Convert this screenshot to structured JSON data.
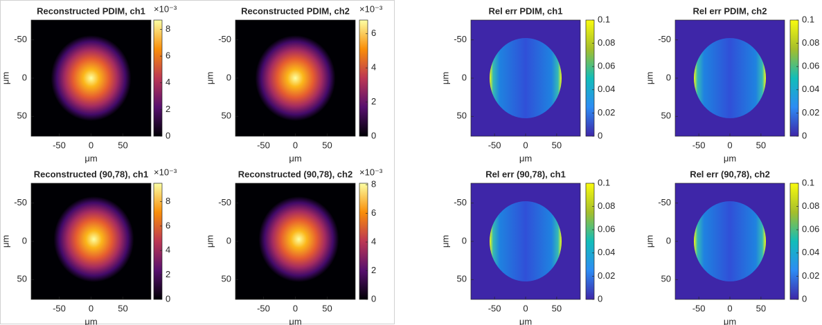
{
  "chart_data": [
    {
      "type": "image",
      "title": "Reconstructed PDIM, ch1",
      "x_label": "μm",
      "y_label": "μm",
      "xlim": [
        -94,
        94
      ],
      "ylim": [
        -76,
        76
      ],
      "y_direction": "reverse",
      "xticks": [
        -50,
        0,
        50
      ],
      "yticks": [
        -50,
        0,
        50
      ],
      "colormap": "inferno",
      "colorbar": {
        "lim": [
          0,
          8.7
        ],
        "ticks": [
          0,
          2,
          4,
          6,
          8
        ],
        "exponent": "×10⁻³"
      }
    },
    {
      "type": "image",
      "title": "Reconstructed PDIM, ch2",
      "x_label": "μm",
      "y_label": "μm",
      "xlim": [
        -94,
        94
      ],
      "ylim": [
        -76,
        76
      ],
      "y_direction": "reverse",
      "xticks": [
        -50,
        0,
        50
      ],
      "yticks": [
        -50,
        0,
        50
      ],
      "colormap": "inferno",
      "colorbar": {
        "lim": [
          0,
          6.8
        ],
        "ticks": [
          0,
          2,
          4,
          6
        ],
        "exponent": "×10⁻³"
      }
    },
    {
      "type": "image",
      "title": "Rel err PDIM, ch1",
      "x_label": "μm",
      "y_label": "μm",
      "xlim": [
        -88,
        88
      ],
      "ylim": [
        -76,
        76
      ],
      "y_direction": "reverse",
      "xticks": [
        -50,
        0,
        50
      ],
      "yticks": [
        -50,
        0,
        50
      ],
      "colormap": "parula",
      "colorbar": {
        "lim": [
          0,
          0.1
        ],
        "ticks": [
          0,
          0.02,
          0.04,
          0.06,
          0.08,
          0.1
        ]
      }
    },
    {
      "type": "image",
      "title": "Rel err PDIM, ch2",
      "x_label": "μm",
      "y_label": "μm",
      "xlim": [
        -88,
        88
      ],
      "ylim": [
        -76,
        76
      ],
      "y_direction": "reverse",
      "xticks": [
        -50,
        0,
        50
      ],
      "yticks": [
        -50,
        0,
        50
      ],
      "colormap": "parula",
      "colorbar": {
        "lim": [
          0,
          0.1
        ],
        "ticks": [
          0,
          0.02,
          0.04,
          0.06,
          0.08,
          0.1
        ]
      }
    },
    {
      "type": "image",
      "title": "Reconstructed (90,78), ch1",
      "x_label": "μm",
      "y_label": "μm",
      "xlim": [
        -94,
        94
      ],
      "ylim": [
        -76,
        76
      ],
      "y_direction": "reverse",
      "xticks": [
        -50,
        0,
        50
      ],
      "yticks": [
        -50,
        0,
        50
      ],
      "colormap": "inferno",
      "colorbar": {
        "lim": [
          0,
          9.5
        ],
        "ticks": [
          0,
          2,
          4,
          6,
          8
        ],
        "exponent": "×10⁻³"
      }
    },
    {
      "type": "image",
      "title": "Reconstructed (90,78), ch2",
      "x_label": "μm",
      "y_label": "μm",
      "xlim": [
        -94,
        94
      ],
      "ylim": [
        -76,
        76
      ],
      "y_direction": "reverse",
      "xticks": [
        -50,
        0,
        50
      ],
      "yticks": [
        -50,
        0,
        50
      ],
      "colormap": "inferno",
      "colorbar": {
        "lim": [
          0,
          8.1
        ],
        "ticks": [
          0,
          2,
          4,
          6,
          8
        ],
        "exponent": "×10⁻³"
      }
    },
    {
      "type": "image",
      "title": "Rel err (90,78), ch1",
      "x_label": "μm",
      "y_label": "μm",
      "xlim": [
        -88,
        88
      ],
      "ylim": [
        -76,
        76
      ],
      "y_direction": "reverse",
      "xticks": [
        -50,
        0,
        50
      ],
      "yticks": [
        -50,
        0,
        50
      ],
      "colormap": "parula",
      "colorbar": {
        "lim": [
          0,
          0.1
        ],
        "ticks": [
          0,
          0.02,
          0.04,
          0.06,
          0.08,
          0.1
        ]
      }
    },
    {
      "type": "image",
      "title": "Rel err (90,78), ch2",
      "x_label": "μm",
      "y_label": "μm",
      "xlim": [
        -88,
        88
      ],
      "ylim": [
        -76,
        76
      ],
      "y_direction": "reverse",
      "xticks": [
        -50,
        0,
        50
      ],
      "yticks": [
        -50,
        0,
        50
      ],
      "colormap": "parula",
      "colorbar": {
        "lim": [
          0,
          0.1
        ],
        "ticks": [
          0,
          0.02,
          0.04,
          0.06,
          0.08,
          0.1
        ]
      }
    }
  ]
}
